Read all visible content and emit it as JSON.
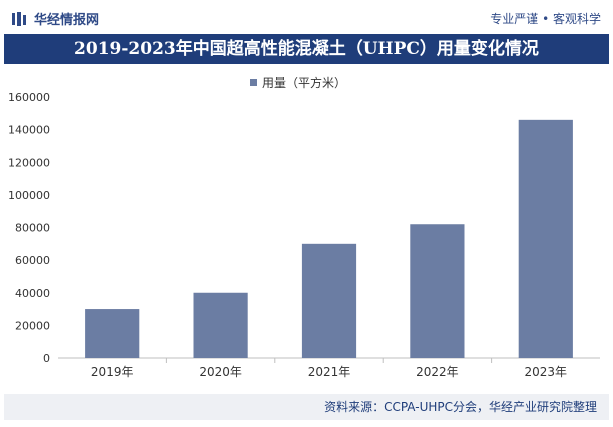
{
  "header": {
    "brand": "华经情报网",
    "slogan": "专业严谨 • 客观科学"
  },
  "footer": {
    "source": "资料来源：CCPA-UHPC分会，华经产业研究院整理"
  },
  "colors": {
    "bar": "#6b7da3",
    "title_bg": "#1f3d7a",
    "accent": "#2f4a87"
  },
  "chart_data": {
    "type": "bar",
    "title": "2019-2023年中国超高性能混凝土（UHPC）用量变化情况",
    "categories": [
      "2019年",
      "2020年",
      "2021年",
      "2022年",
      "2023年"
    ],
    "series": [
      {
        "name": "用量（平方米）",
        "values": [
          30000,
          40000,
          70000,
          82000,
          146000
        ]
      }
    ],
    "ylim": [
      0,
      160000
    ],
    "yticks": [
      0,
      20000,
      40000,
      60000,
      80000,
      100000,
      120000,
      140000,
      160000
    ],
    "legend": "top-center",
    "grid": false,
    "xlabel": "",
    "ylabel": ""
  }
}
